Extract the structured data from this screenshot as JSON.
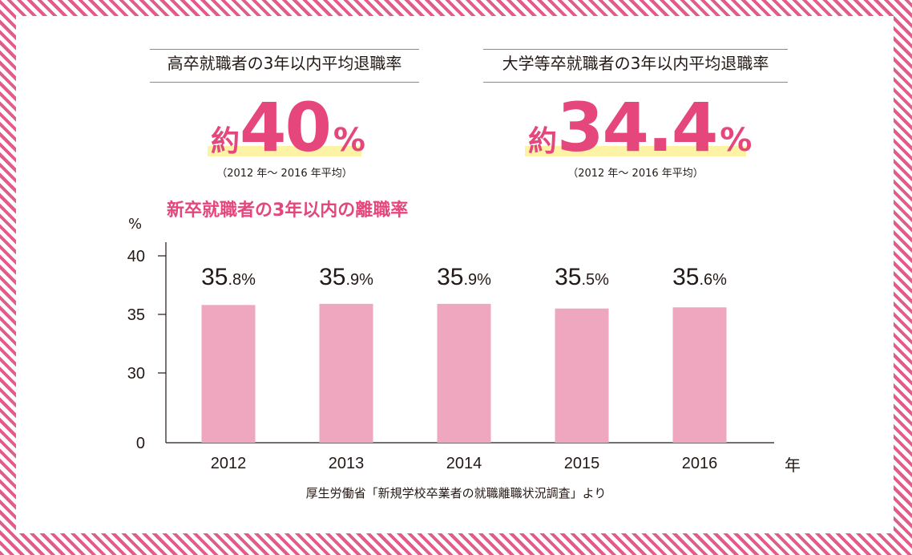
{
  "stats": [
    {
      "title": "高卒就職者の3年以内平均退職率",
      "prefix": "約",
      "value": "40",
      "unit": "%",
      "period": "（2012 年〜 2016 年平均）"
    },
    {
      "title": "大学等卒就職者の3年以内平均退職率",
      "prefix": "約",
      "value": "34.4",
      "unit": "%",
      "period": "（2012 年〜 2016 年平均）"
    }
  ],
  "source": "厚生労働省「新規学校卒業者の就職離職状況調査」より",
  "colors": {
    "accent": "#e5467c",
    "bar": "#efa6bf",
    "highlight": "#fdf3a6",
    "frame_stripe": "#e45a8a"
  },
  "chart_data": {
    "type": "bar",
    "title": "新卒就職者の3年以内の離職率",
    "ylabel": "%",
    "xlabel": "年",
    "categories": [
      "2012",
      "2013",
      "2014",
      "2015",
      "2016"
    ],
    "values": [
      35.8,
      35.9,
      35.9,
      35.5,
      35.6
    ],
    "value_labels": [
      {
        "int": "35",
        "dec": ".8%"
      },
      {
        "int": "35",
        "dec": ".9%"
      },
      {
        "int": "35",
        "dec": ".9%"
      },
      {
        "int": "35",
        "dec": ".5%"
      },
      {
        "int": "35",
        "dec": ".6%"
      }
    ],
    "yticks": [
      "0",
      "30",
      "35",
      "40"
    ],
    "ylim": [
      0,
      40
    ],
    "axis_break": true,
    "grid": false,
    "legend": "none"
  }
}
